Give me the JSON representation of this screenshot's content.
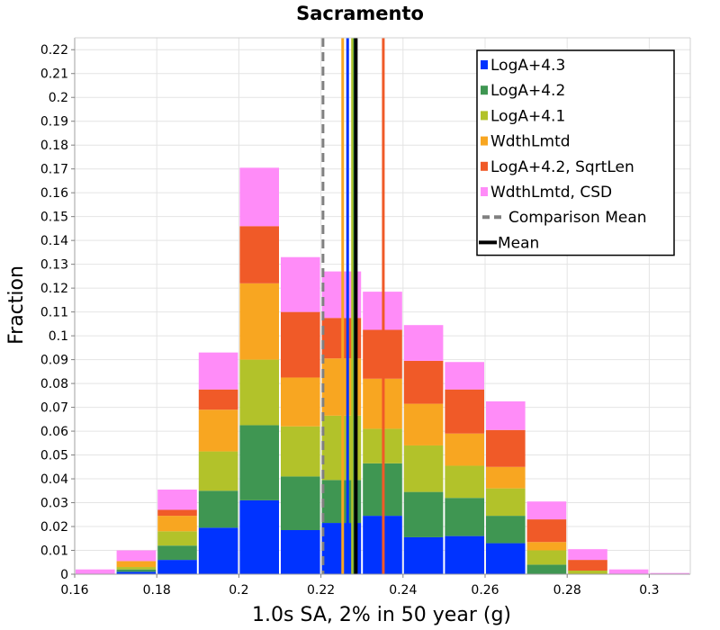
{
  "chart_data": {
    "type": "bar",
    "stacked": true,
    "title": "Sacramento",
    "xlabel": "1.0s SA, 2% in 50 year (g)",
    "ylabel": "Fraction",
    "xlim": [
      0.16,
      0.31
    ],
    "ylim": [
      0,
      0.225
    ],
    "xticks": [
      "0.16",
      "0.18",
      "0.2",
      "0.22",
      "0.24",
      "0.26",
      "0.28",
      "0.3"
    ],
    "yticks": [
      "0",
      "0.01",
      "0.02",
      "0.03",
      "0.04",
      "0.05",
      "0.06",
      "0.07",
      "0.08",
      "0.09",
      "0.1",
      "0.11",
      "0.12",
      "0.13",
      "0.14",
      "0.15",
      "0.16",
      "0.17",
      "0.18",
      "0.19",
      "0.2",
      "0.21",
      "0.22"
    ],
    "grid": true,
    "bin_width": 0.01,
    "bin_centers": [
      0.165,
      0.175,
      0.185,
      0.195,
      0.205,
      0.215,
      0.225,
      0.235,
      0.245,
      0.255,
      0.265,
      0.275,
      0.285,
      0.295,
      0.305
    ],
    "series": [
      {
        "name": "LogA+4.3",
        "color": "#0033ff",
        "values": [
          0.0,
          0.001,
          0.006,
          0.0195,
          0.031,
          0.0185,
          0.0215,
          0.0245,
          0.0155,
          0.016,
          0.013,
          0.0,
          0.0,
          0.0,
          0.0
        ]
      },
      {
        "name": "LogA+4.2",
        "color": "#3f9652",
        "values": [
          0.0,
          0.001,
          0.006,
          0.0155,
          0.0315,
          0.0225,
          0.018,
          0.022,
          0.019,
          0.016,
          0.0115,
          0.004,
          0.0,
          0.0,
          0.0
        ]
      },
      {
        "name": "LogA+4.1",
        "color": "#b2c22a",
        "values": [
          0.0,
          0.001,
          0.006,
          0.0165,
          0.0275,
          0.021,
          0.027,
          0.0145,
          0.0195,
          0.0135,
          0.0115,
          0.006,
          0.0015,
          0.0,
          0.0
        ]
      },
      {
        "name": "WdthLmtd",
        "color": "#f8a621",
        "values": [
          0.0,
          0.0025,
          0.0065,
          0.0175,
          0.032,
          0.0205,
          0.024,
          0.021,
          0.0175,
          0.0135,
          0.009,
          0.0035,
          0.0,
          0.0,
          0.0
        ]
      },
      {
        "name": "LogA+4.2, SqrtLen",
        "color": "#f05a28",
        "values": [
          0.0,
          0.0,
          0.0025,
          0.0085,
          0.024,
          0.0275,
          0.017,
          0.0205,
          0.018,
          0.0185,
          0.0155,
          0.0095,
          0.0045,
          0.0,
          0.0
        ]
      },
      {
        "name": "WdthLmtd, CSD",
        "color": "#ff8cf8",
        "values": [
          0.002,
          0.0045,
          0.0085,
          0.0155,
          0.0245,
          0.023,
          0.0195,
          0.016,
          0.015,
          0.0115,
          0.012,
          0.0075,
          0.0045,
          0.002,
          0.0005
        ]
      }
    ],
    "vertical_lines": [
      {
        "name": "Comparison Mean",
        "x": 0.2205,
        "color": "#808080",
        "style": "dashed"
      },
      {
        "name": "",
        "x": 0.2253,
        "color": "#f8a621",
        "style": "solid"
      },
      {
        "name": "",
        "x": 0.2265,
        "color": "#0033ff",
        "style": "solid"
      },
      {
        "name": "",
        "x": 0.2277,
        "color": "#b2c22a",
        "style": "solid"
      },
      {
        "name": "",
        "x": 0.2282,
        "color": "#3f9652",
        "style": "solid"
      },
      {
        "name": "",
        "x": 0.2352,
        "color": "#f05a28",
        "style": "solid"
      },
      {
        "name": "Mean",
        "x": 0.2285,
        "color": "#000000",
        "style": "solid"
      }
    ],
    "legend": {
      "placement": "top-right",
      "entries": [
        {
          "label": "LogA+4.3",
          "color": "#0033ff",
          "kind": "box"
        },
        {
          "label": "LogA+4.2",
          "color": "#3f9652",
          "kind": "box"
        },
        {
          "label": "LogA+4.1",
          "color": "#b2c22a",
          "kind": "box"
        },
        {
          "label": "WdthLmtd",
          "color": "#f8a621",
          "kind": "box"
        },
        {
          "label": "LogA+4.2, SqrtLen",
          "color": "#f05a28",
          "kind": "box"
        },
        {
          "label": "WdthLmtd, CSD",
          "color": "#ff8cf8",
          "kind": "box"
        },
        {
          "label": "Comparison Mean",
          "color": "#808080",
          "kind": "dashed"
        },
        {
          "label": "Mean",
          "color": "#000000",
          "kind": "line"
        }
      ]
    }
  }
}
